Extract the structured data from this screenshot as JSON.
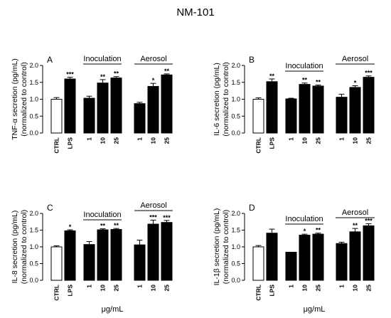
{
  "figure_title": "NM-101",
  "x_unit_label": "μg/mL",
  "chart_data": [
    {
      "type": "bar",
      "panel": "A",
      "ylabel": "TNF-α secretion (pg/mL)",
      "ylabel2": "(normalized to control)",
      "ylim": [
        0,
        2.0
      ],
      "yticks": [
        "0.0",
        "0.5",
        "1.0",
        "1.5",
        "2.0"
      ],
      "categories": [
        "CTRL",
        "LPS",
        "1",
        "10",
        "25",
        "1",
        "10",
        "25"
      ],
      "groups": [
        {
          "label": "",
          "indices": [
            0,
            1
          ]
        },
        {
          "label": "Inoculation",
          "indices": [
            2,
            3,
            4
          ]
        },
        {
          "label": "Aerosol",
          "indices": [
            5,
            6,
            7
          ]
        }
      ],
      "values": [
        1.0,
        1.6,
        1.03,
        1.48,
        1.63,
        0.87,
        1.38,
        1.72
      ],
      "errors": [
        0.05,
        0.05,
        0.06,
        0.1,
        0.04,
        0.04,
        0.09,
        0.03
      ],
      "significance": [
        "",
        "***",
        "",
        "**",
        "**",
        "",
        "*",
        "**"
      ],
      "colors": [
        "#ffffff",
        "#000000",
        "#000000",
        "#000000",
        "#000000",
        "#000000",
        "#000000",
        "#000000"
      ]
    },
    {
      "type": "bar",
      "panel": "B",
      "ylabel": "IL-6 secretion (pg/mL)",
      "ylabel2": "(normalized to control)",
      "ylim": [
        0,
        2.0
      ],
      "yticks": [
        "0.0",
        "0.5",
        "1.0",
        "1.5",
        "2.0"
      ],
      "categories": [
        "CTRL",
        "LPS",
        "1",
        "10",
        "25",
        "1",
        "10",
        "25"
      ],
      "groups": [
        {
          "label": "",
          "indices": [
            0,
            1
          ]
        },
        {
          "label": "Inoculation",
          "indices": [
            2,
            3,
            4
          ]
        },
        {
          "label": "Aerosol",
          "indices": [
            5,
            6,
            7
          ]
        }
      ],
      "values": [
        1.0,
        1.52,
        1.01,
        1.44,
        1.39,
        1.06,
        1.35,
        1.65
      ],
      "errors": [
        0.04,
        0.08,
        0.02,
        0.04,
        0.03,
        0.09,
        0.05,
        0.04
      ],
      "significance": [
        "",
        "**",
        "",
        "**",
        "**",
        "",
        "*",
        "***"
      ],
      "colors": [
        "#ffffff",
        "#000000",
        "#000000",
        "#000000",
        "#000000",
        "#000000",
        "#000000",
        "#000000"
      ]
    },
    {
      "type": "bar",
      "panel": "C",
      "ylabel": "IL-8 secretion (pg/mL)",
      "ylabel2": "(normalized to control)",
      "ylim": [
        0,
        2.0
      ],
      "yticks": [
        "0.0",
        "0.5",
        "1.0",
        "1.5",
        "2.0"
      ],
      "categories": [
        "CTRL",
        "LPS",
        "1",
        "10",
        "25",
        "1",
        "10",
        "25"
      ],
      "groups": [
        {
          "label": "",
          "indices": [
            0,
            1
          ]
        },
        {
          "label": "Inoculation",
          "indices": [
            2,
            3,
            4
          ]
        },
        {
          "label": "Aerosol",
          "indices": [
            5,
            6,
            7
          ]
        }
      ],
      "values": [
        1.0,
        1.48,
        1.07,
        1.51,
        1.52,
        1.06,
        1.68,
        1.73
      ],
      "errors": [
        0.03,
        0.03,
        0.09,
        0.03,
        0.03,
        0.14,
        0.12,
        0.06
      ],
      "significance": [
        "",
        "*",
        "",
        "**",
        "**",
        "",
        "***",
        "***"
      ],
      "colors": [
        "#ffffff",
        "#000000",
        "#000000",
        "#000000",
        "#000000",
        "#000000",
        "#000000",
        "#000000"
      ]
    },
    {
      "type": "bar",
      "panel": "D",
      "ylabel": "IL-1β secretion (pg/mL)",
      "ylabel2": "(normalized to control)",
      "ylim": [
        0,
        2.0
      ],
      "yticks": [
        "0.0",
        "0.5",
        "1.0",
        "1.5",
        "2.0"
      ],
      "categories": [
        "CTRL",
        "LPS",
        "1",
        "10",
        "25",
        "1",
        "10",
        "25"
      ],
      "groups": [
        {
          "label": "",
          "indices": [
            0,
            1
          ]
        },
        {
          "label": "Inoculation",
          "indices": [
            2,
            3,
            4
          ]
        },
        {
          "label": "Aerosol",
          "indices": [
            5,
            6,
            7
          ]
        }
      ],
      "values": [
        1.0,
        1.41,
        0.84,
        1.35,
        1.38,
        1.1,
        1.45,
        1.63
      ],
      "errors": [
        0.04,
        0.12,
        0.0,
        0.03,
        0.03,
        0.04,
        0.1,
        0.06
      ],
      "significance": [
        "",
        "",
        "",
        "*",
        "**",
        "",
        "**",
        "***"
      ],
      "colors": [
        "#ffffff",
        "#000000",
        "#000000",
        "#000000",
        "#000000",
        "#000000",
        "#000000",
        "#000000"
      ]
    }
  ]
}
